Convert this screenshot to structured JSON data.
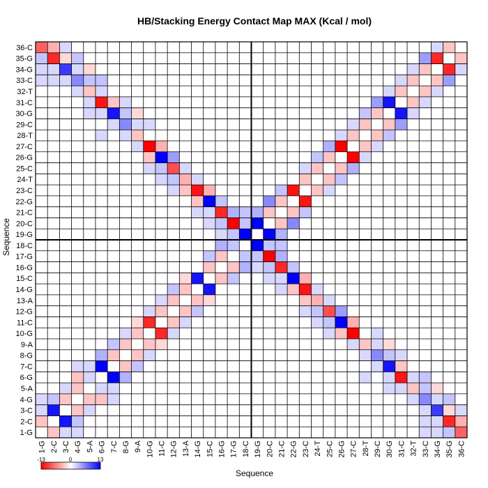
{
  "chart_data": {
    "type": "heatmap",
    "title": "HB/Stacking Energy Contact Map MAX (Kcal / mol)",
    "xlabel": "Sequence",
    "ylabel": "Sequence",
    "labels": [
      "1-G",
      "2-C",
      "3-C",
      "4-G",
      "5-A",
      "6-G",
      "7-C",
      "8-G",
      "9-A",
      "10-G",
      "11-C",
      "12-G",
      "13-A",
      "14-G",
      "15-C",
      "16-G",
      "17-G",
      "18-C",
      "19-G",
      "20-C",
      "21-C",
      "22-G",
      "23-C",
      "24-T",
      "25-C",
      "26-G",
      "27-C",
      "28-T",
      "29-C",
      "30-G",
      "31-C",
      "32-T",
      "33-C",
      "34-G",
      "35-G",
      "36-C"
    ],
    "colorbar": {
      "min": -13,
      "max": 13,
      "min_label": "-13",
      "mid_label": "0",
      "max_label": "13",
      "low_color": "#ff0000",
      "mid_color": "#ffffff",
      "high_color": "#0000ff"
    },
    "cells": [
      [
        1,
        2,
        -3
      ],
      [
        2,
        3,
        -3
      ],
      [
        3,
        4,
        -3
      ],
      [
        4,
        5,
        -3
      ],
      [
        5,
        6,
        -3
      ],
      [
        6,
        7,
        -3
      ],
      [
        7,
        8,
        -3
      ],
      [
        8,
        9,
        -3
      ],
      [
        9,
        10,
        -3
      ],
      [
        10,
        11,
        -3
      ],
      [
        11,
        12,
        -3
      ],
      [
        12,
        13,
        -3
      ],
      [
        13,
        14,
        -3
      ],
      [
        14,
        15,
        -3
      ],
      [
        15,
        16,
        -3
      ],
      [
        16,
        17,
        -3
      ],
      [
        17,
        18,
        -3
      ],
      [
        19,
        20,
        -3
      ],
      [
        20,
        21,
        -3
      ],
      [
        21,
        22,
        -3
      ],
      [
        22,
        23,
        -3
      ],
      [
        23,
        24,
        -3
      ],
      [
        24,
        25,
        -3
      ],
      [
        25,
        26,
        -3
      ],
      [
        26,
        27,
        -3
      ],
      [
        27,
        28,
        -3
      ],
      [
        28,
        29,
        -3
      ],
      [
        29,
        30,
        -3
      ],
      [
        30,
        31,
        -3
      ],
      [
        31,
        32,
        -3
      ],
      [
        32,
        33,
        -3
      ],
      [
        33,
        34,
        -3
      ],
      [
        34,
        35,
        -3
      ],
      [
        35,
        36,
        -3
      ],
      [
        1,
        36,
        -8
      ],
      [
        2,
        35,
        -11
      ],
      [
        3,
        34,
        10
      ],
      [
        4,
        33,
        6
      ],
      [
        5,
        32,
        -3
      ],
      [
        6,
        31,
        -12
      ],
      [
        7,
        30,
        12
      ],
      [
        8,
        29,
        6
      ],
      [
        9,
        28,
        -3
      ],
      [
        10,
        27,
        -13
      ],
      [
        11,
        26,
        13
      ],
      [
        12,
        25,
        -9
      ],
      [
        13,
        24,
        -4
      ],
      [
        14,
        23,
        -12
      ],
      [
        15,
        22,
        13
      ],
      [
        16,
        21,
        -11
      ],
      [
        17,
        20,
        -13
      ],
      [
        18,
        19,
        13
      ],
      [
        1,
        2,
        -3
      ],
      [
        2,
        1,
        -3
      ],
      [
        3,
        2,
        -3
      ],
      [
        4,
        3,
        -3
      ],
      [
        5,
        4,
        -3
      ],
      [
        6,
        5,
        -3
      ],
      [
        7,
        6,
        -3
      ],
      [
        8,
        7,
        -3
      ],
      [
        9,
        8,
        -3
      ],
      [
        10,
        9,
        -3
      ],
      [
        11,
        10,
        -3
      ],
      [
        12,
        11,
        -3
      ],
      [
        13,
        12,
        -3
      ],
      [
        14,
        13,
        -3
      ],
      [
        15,
        14,
        -3
      ],
      [
        16,
        15,
        -3
      ],
      [
        17,
        16,
        -3
      ],
      [
        18,
        17,
        -3
      ],
      [
        20,
        19,
        -3
      ],
      [
        21,
        20,
        -3
      ],
      [
        22,
        21,
        -3
      ],
      [
        23,
        22,
        -3
      ],
      [
        24,
        23,
        -3
      ],
      [
        25,
        24,
        -3
      ],
      [
        26,
        25,
        -3
      ],
      [
        27,
        26,
        -3
      ],
      [
        28,
        27,
        -3
      ],
      [
        29,
        28,
        -3
      ],
      [
        30,
        29,
        -3
      ],
      [
        31,
        30,
        -3
      ],
      [
        32,
        31,
        -3
      ],
      [
        33,
        32,
        -3
      ],
      [
        34,
        33,
        -3
      ],
      [
        35,
        34,
        -3
      ],
      [
        36,
        35,
        -3
      ],
      [
        36,
        1,
        -8
      ],
      [
        35,
        2,
        -11
      ],
      [
        34,
        3,
        10
      ],
      [
        33,
        4,
        6
      ],
      [
        32,
        5,
        -3
      ],
      [
        31,
        6,
        -12
      ],
      [
        30,
        7,
        12
      ],
      [
        29,
        8,
        6
      ],
      [
        28,
        9,
        -3
      ],
      [
        27,
        10,
        -13
      ],
      [
        26,
        11,
        13
      ],
      [
        25,
        12,
        -9
      ],
      [
        24,
        13,
        -4
      ],
      [
        23,
        14,
        -12
      ],
      [
        22,
        15,
        13
      ],
      [
        21,
        16,
        -11
      ],
      [
        20,
        17,
        -13
      ],
      [
        19,
        18,
        13
      ],
      [
        2,
        3,
        12
      ],
      [
        3,
        2,
        12
      ],
      [
        6,
        7,
        13
      ],
      [
        7,
        6,
        13
      ],
      [
        10,
        11,
        -11
      ],
      [
        11,
        10,
        -11
      ],
      [
        14,
        15,
        12
      ],
      [
        15,
        14,
        12
      ],
      [
        19,
        20,
        13
      ],
      [
        20,
        19,
        13
      ],
      [
        22,
        23,
        -12
      ],
      [
        23,
        22,
        -12
      ],
      [
        26,
        27,
        -13
      ],
      [
        27,
        26,
        -13
      ],
      [
        30,
        31,
        12
      ],
      [
        31,
        30,
        12
      ],
      [
        34,
        35,
        -11
      ],
      [
        35,
        34,
        -11
      ],
      [
        1,
        3,
        2
      ],
      [
        3,
        1,
        2
      ],
      [
        2,
        4,
        3
      ],
      [
        4,
        2,
        3
      ],
      [
        5,
        7,
        2
      ],
      [
        7,
        5,
        2
      ],
      [
        6,
        8,
        4
      ],
      [
        8,
        6,
        4
      ],
      [
        7,
        9,
        3
      ],
      [
        9,
        7,
        3
      ],
      [
        9,
        11,
        -2
      ],
      [
        11,
        9,
        -2
      ],
      [
        10,
        12,
        2
      ],
      [
        12,
        10,
        2
      ],
      [
        12,
        14,
        3
      ],
      [
        14,
        12,
        3
      ],
      [
        13,
        15,
        -2
      ],
      [
        15,
        13,
        -2
      ],
      [
        16,
        18,
        4
      ],
      [
        18,
        16,
        4
      ],
      [
        17,
        19,
        3
      ],
      [
        19,
        17,
        3
      ],
      [
        19,
        21,
        4
      ],
      [
        21,
        19,
        4
      ],
      [
        20,
        22,
        6
      ],
      [
        22,
        20,
        6
      ],
      [
        24,
        26,
        3
      ],
      [
        26,
        24,
        3
      ],
      [
        25,
        27,
        4
      ],
      [
        27,
        25,
        4
      ],
      [
        28,
        30,
        3
      ],
      [
        30,
        28,
        3
      ],
      [
        29,
        31,
        5
      ],
      [
        31,
        29,
        5
      ],
      [
        32,
        34,
        2
      ],
      [
        34,
        32,
        2
      ],
      [
        33,
        35,
        5
      ],
      [
        35,
        33,
        5
      ],
      [
        2,
        36,
        -4
      ],
      [
        36,
        2,
        -4
      ],
      [
        1,
        35,
        3
      ],
      [
        35,
        1,
        3
      ],
      [
        3,
        35,
        -2
      ],
      [
        35,
        3,
        -2
      ],
      [
        4,
        34,
        2
      ],
      [
        34,
        4,
        2
      ],
      [
        5,
        33,
        3
      ],
      [
        33,
        5,
        3
      ],
      [
        6,
        32,
        2
      ],
      [
        32,
        6,
        2
      ],
      [
        7,
        31,
        -3
      ],
      [
        31,
        7,
        -3
      ],
      [
        8,
        30,
        3
      ],
      [
        30,
        8,
        3
      ],
      [
        9,
        29,
        2
      ],
      [
        29,
        9,
        2
      ],
      [
        10,
        26,
        -3
      ],
      [
        26,
        10,
        -3
      ],
      [
        11,
        27,
        -4
      ],
      [
        27,
        11,
        -4
      ],
      [
        11,
        25,
        3
      ],
      [
        25,
        11,
        3
      ],
      [
        12,
        26,
        5
      ],
      [
        26,
        12,
        5
      ],
      [
        13,
        23,
        -3
      ],
      [
        23,
        13,
        -3
      ],
      [
        14,
        22,
        -3
      ],
      [
        22,
        14,
        -3
      ],
      [
        15,
        23,
        -4
      ],
      [
        23,
        15,
        -4
      ],
      [
        16,
        22,
        3
      ],
      [
        22,
        16,
        3
      ],
      [
        17,
        21,
        4
      ],
      [
        21,
        17,
        4
      ],
      [
        18,
        20,
        3
      ],
      [
        20,
        18,
        3
      ],
      [
        15,
        21,
        2
      ],
      [
        21,
        15,
        2
      ],
      [
        16,
        20,
        3
      ],
      [
        20,
        16,
        3
      ],
      [
        14,
        24,
        2
      ],
      [
        24,
        14,
        2
      ],
      [
        12,
        24,
        3
      ],
      [
        24,
        12,
        3
      ],
      [
        9,
        30,
        -2
      ],
      [
        30,
        9,
        -2
      ],
      [
        8,
        31,
        2
      ],
      [
        31,
        8,
        2
      ],
      [
        6,
        33,
        3
      ],
      [
        33,
        6,
        3
      ],
      [
        5,
        34,
        -2
      ],
      [
        34,
        5,
        -2
      ],
      [
        4,
        35,
        3
      ],
      [
        35,
        4,
        3
      ],
      [
        3,
        36,
        2
      ],
      [
        36,
        3,
        2
      ],
      [
        4,
        6,
        -3
      ],
      [
        6,
        4,
        -3
      ],
      [
        5,
        6,
        2
      ],
      [
        6,
        5,
        2
      ],
      [
        3,
        5,
        2
      ],
      [
        5,
        3,
        2
      ],
      [
        1,
        4,
        2
      ],
      [
        4,
        1,
        2
      ],
      [
        4,
        7,
        2
      ],
      [
        7,
        4,
        2
      ],
      [
        8,
        10,
        2
      ],
      [
        10,
        8,
        2
      ],
      [
        11,
        13,
        2
      ],
      [
        13,
        11,
        2
      ],
      [
        15,
        17,
        3
      ],
      [
        17,
        15,
        3
      ],
      [
        18,
        21,
        3
      ],
      [
        21,
        18,
        3
      ],
      [
        21,
        23,
        3
      ],
      [
        23,
        21,
        3
      ],
      [
        23,
        25,
        2
      ],
      [
        25,
        23,
        2
      ],
      [
        26,
        28,
        2
      ],
      [
        28,
        26,
        2
      ],
      [
        27,
        29,
        2
      ],
      [
        29,
        27,
        2
      ],
      [
        30,
        32,
        2
      ],
      [
        32,
        30,
        2
      ],
      [
        31,
        33,
        2
      ],
      [
        33,
        31,
        2
      ],
      [
        34,
        36,
        2
      ],
      [
        36,
        34,
        2
      ],
      [
        6,
        28,
        2
      ],
      [
        28,
        6,
        2
      ],
      [
        7,
        29,
        2
      ],
      [
        29,
        7,
        2
      ],
      [
        8,
        28,
        2
      ],
      [
        28,
        8,
        2
      ],
      [
        13,
        25,
        2
      ],
      [
        25,
        13,
        2
      ],
      [
        12,
        23,
        2
      ],
      [
        23,
        12,
        2
      ],
      [
        14,
        21,
        2
      ],
      [
        21,
        14,
        2
      ],
      [
        15,
        20,
        2
      ],
      [
        20,
        15,
        2
      ],
      [
        16,
        19,
        2
      ],
      [
        19,
        16,
        2
      ],
      [
        17,
        18,
        3
      ],
      [
        18,
        17,
        3
      ],
      [
        10,
        29,
        2
      ],
      [
        29,
        10,
        2
      ],
      [
        9,
        27,
        2
      ],
      [
        27,
        9,
        2
      ],
      [
        5,
        31,
        2
      ],
      [
        31,
        5,
        2
      ],
      [
        4,
        32,
        2
      ],
      [
        32,
        4,
        2
      ],
      [
        3,
        33,
        2
      ],
      [
        33,
        3,
        2
      ],
      [
        2,
        34,
        2
      ],
      [
        34,
        2,
        2
      ],
      [
        1,
        33,
        2
      ],
      [
        33,
        1,
        2
      ],
      [
        2,
        33,
        2
      ],
      [
        33,
        2,
        2
      ],
      [
        1,
        34,
        2
      ],
      [
        34,
        1,
        2
      ],
      [
        6,
        30,
        2
      ],
      [
        30,
        6,
        2
      ],
      [
        5,
        30,
        2
      ],
      [
        30,
        5,
        2
      ],
      [
        11,
        24,
        2
      ],
      [
        24,
        11,
        2
      ],
      [
        10,
        25,
        2
      ],
      [
        25,
        10,
        2
      ]
    ]
  }
}
